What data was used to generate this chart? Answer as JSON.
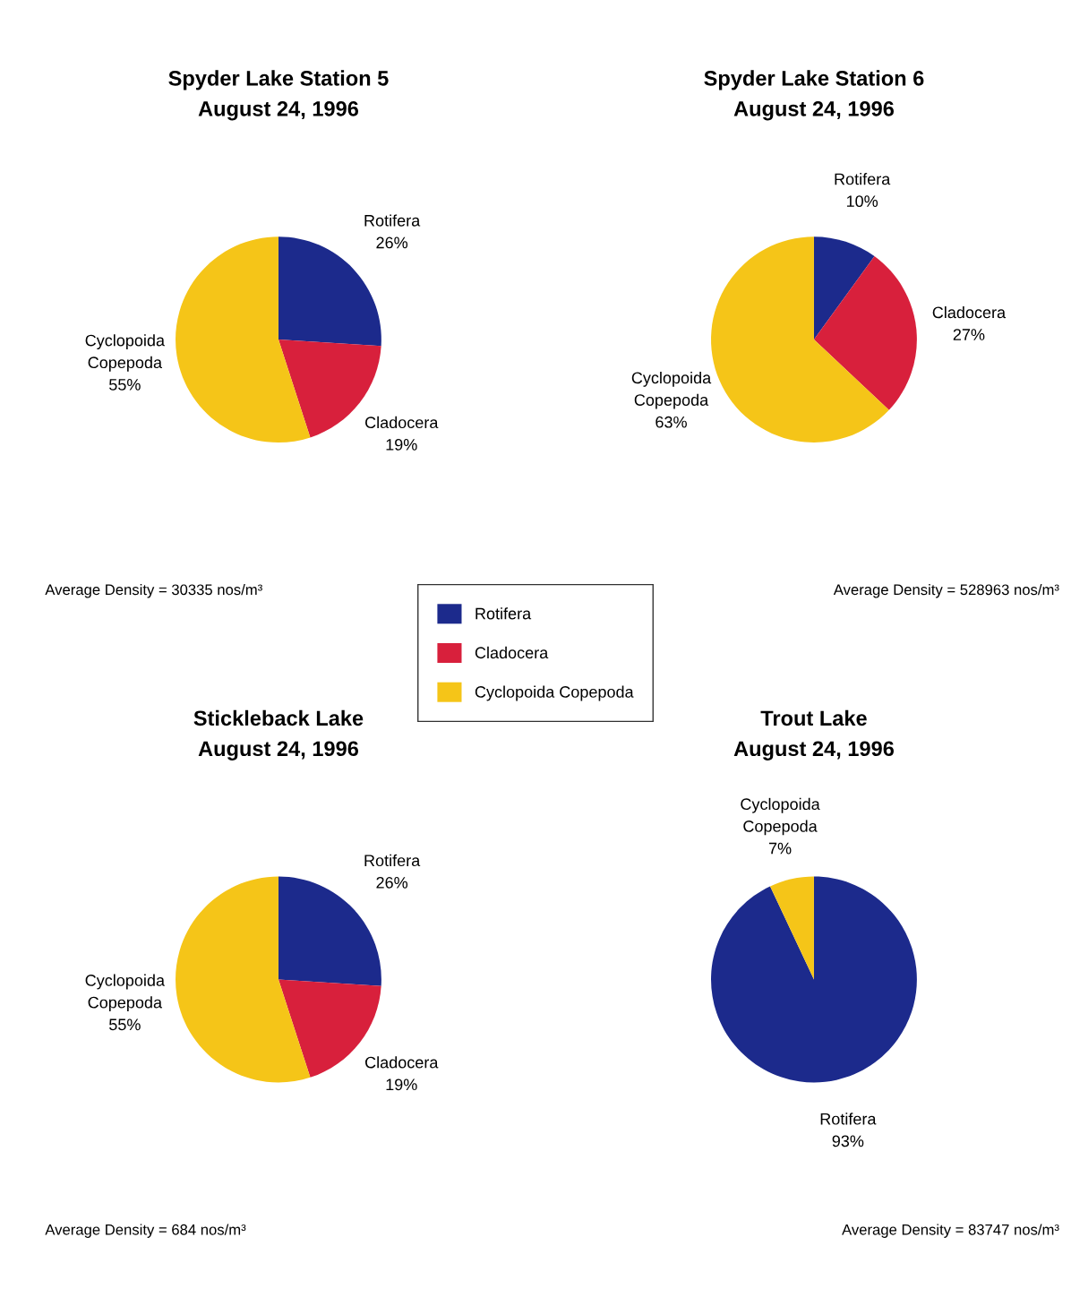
{
  "chart_data": [
    {
      "type": "pie",
      "title": "Spyder Lake Station 5\nAugust 24, 1996",
      "categories": [
        "Rotifera",
        "Cladocera",
        "Cyclopoida Copepoda"
      ],
      "values": [
        26,
        19,
        55
      ],
      "value_labels": [
        "26%",
        "19%",
        "55%"
      ],
      "colors": [
        "#1c2a8c",
        "#d8203c",
        "#f5c518"
      ],
      "legend": "bottom right",
      "annotations": [
        "Average Density = 30335 nos/m³"
      ]
    },
    {
      "type": "pie",
      "title": "Spyder Lake Station 6\nAugust 24, 1996",
      "categories": [
        "Rotifera",
        "Cladocera",
        "Cyclopoida Copepoda"
      ],
      "values": [
        10,
        27,
        63
      ],
      "value_labels": [
        "10%",
        "27%",
        "63%"
      ],
      "colors": [
        "#1c2a8c",
        "#d8203c",
        "#f5c518"
      ],
      "annotations": [
        "Average Density = 528963 nos/m³"
      ]
    },
    {
      "type": "pie",
      "title": "Stickleback Lake\nAugust 24, 1996",
      "categories": [
        "Rotifera",
        "Cladocera",
        "Cyclopoida Copepoda"
      ],
      "values": [
        26,
        19,
        55
      ],
      "value_labels": [
        "26%",
        "19%",
        "55%"
      ],
      "colors": [
        "#1c2a8c",
        "#d8203c",
        "#f5c518"
      ],
      "annotations": [
        "Average Density = 684 nos/m³"
      ]
    },
    {
      "type": "pie",
      "title": "Trout Lake\nAugust 24, 1996",
      "categories": [
        "Rotifera",
        "Cyclopoida Copepoda"
      ],
      "values": [
        93,
        7
      ],
      "value_labels": [
        "93%",
        "7%"
      ],
      "colors": [
        "#1c2a8c",
        "#f5c518"
      ],
      "annotations": [
        "Average Density = 83747 nos/m³"
      ]
    }
  ]
}
